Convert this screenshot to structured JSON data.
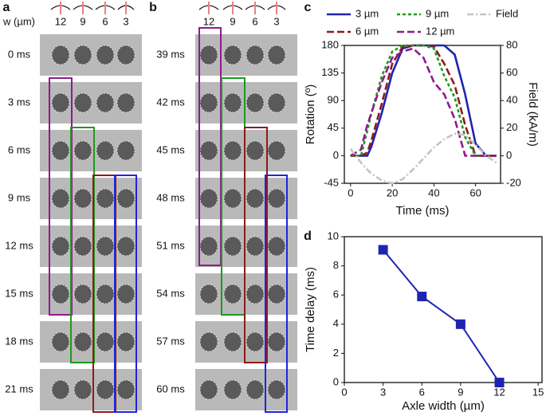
{
  "panels": [
    {
      "label": "a",
      "header": "w (µm)",
      "widths": [
        "12",
        "9",
        "6",
        "3"
      ],
      "times": [
        "0 ms",
        "3 ms",
        "6 ms",
        "9 ms",
        "12 ms",
        "15 ms",
        "18 ms",
        "21 ms"
      ]
    },
    {
      "label": "b",
      "widths": [
        "12",
        "9",
        "6",
        "3"
      ],
      "times": [
        "39 ms",
        "42 ms",
        "45 ms",
        "48 ms",
        "51 ms",
        "54 ms",
        "57 ms",
        "60 ms"
      ]
    }
  ],
  "chart_data": [
    {
      "type": "line",
      "panel_label": "c",
      "xlabel": "Time (ms)",
      "ylabel": "Rotation (º)",
      "y2label": "Field (kA/m)",
      "x": [
        0,
        5,
        8,
        10,
        15,
        20,
        25,
        30,
        35,
        40,
        45,
        50,
        55,
        60,
        65,
        70
      ],
      "series": [
        {
          "name": "3 µm",
          "color": "#1f24b0",
          "dash": "solid",
          "values": [
            0,
            0,
            0,
            15,
            70,
            135,
            175,
            180,
            180,
            180,
            180,
            165,
            100,
            20,
            0,
            0
          ]
        },
        {
          "name": "6 µm",
          "color": "#8f1a1a",
          "dash": "long",
          "values": [
            0,
            0,
            5,
            25,
            85,
            150,
            178,
            180,
            180,
            178,
            150,
            115,
            50,
            0,
            0,
            0
          ]
        },
        {
          "name": "9 µm",
          "color": "#1e9a1e",
          "dash": "short",
          "values": [
            0,
            0,
            40,
            70,
            130,
            170,
            180,
            180,
            180,
            175,
            130,
            95,
            30,
            0,
            0,
            0
          ]
        },
        {
          "name": "12 µm",
          "color": "#8e1a8e",
          "dash": "long",
          "values": [
            0,
            10,
            50,
            70,
            120,
            160,
            170,
            175,
            160,
            120,
            100,
            60,
            0,
            0,
            0,
            0
          ]
        },
        {
          "name": "Field",
          "color": "#c4c4c4",
          "dash": "dashdot",
          "axis": "y2",
          "values": [
            5,
            -5,
            -10,
            -13,
            -18,
            -20,
            -17,
            -10,
            -2,
            6,
            12,
            16,
            15,
            8,
            0,
            -5
          ]
        }
      ],
      "xlim": [
        -3,
        72
      ],
      "xticks": [
        0,
        20,
        40,
        60
      ],
      "ylim": [
        -45,
        180
      ],
      "yticks": [
        -45,
        0,
        45,
        90,
        135,
        180
      ],
      "y2lim": [
        -20,
        80
      ],
      "y2ticks": [
        -20,
        0,
        20,
        40,
        60,
        80
      ],
      "legend": "top"
    },
    {
      "type": "line",
      "panel_label": "d",
      "xlabel": "Axle width (µm)",
      "ylabel": "Time delay (ms)",
      "x": [
        3,
        6,
        9,
        12
      ],
      "series": [
        {
          "color": "#1f24b0",
          "dash": "solid",
          "marker": "square",
          "values": [
            9.1,
            5.9,
            4.0,
            0
          ]
        }
      ],
      "xlim": [
        0,
        15.3
      ],
      "xticks": [
        0,
        3,
        6,
        9,
        12,
        15
      ],
      "ylim": [
        0,
        10
      ],
      "yticks": [
        0,
        2,
        4,
        6,
        8,
        10
      ]
    }
  ]
}
